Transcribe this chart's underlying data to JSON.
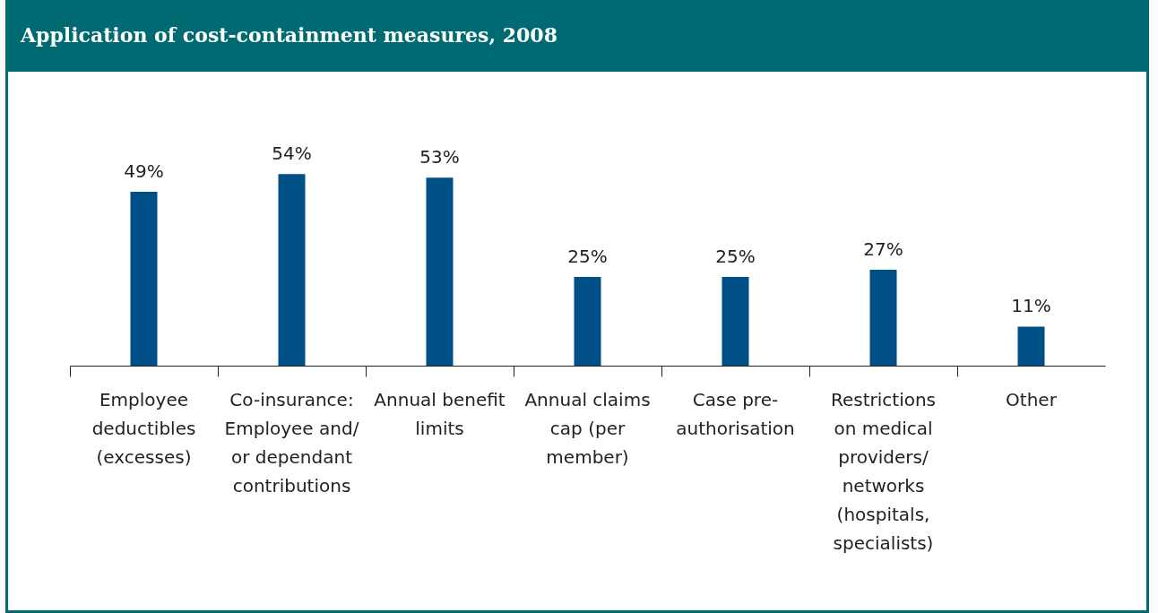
{
  "chart_data": {
    "type": "bar",
    "title": "Application of cost-containment measures, 2008",
    "categories": [
      "Employee deductibles (excesses)",
      "Co-insurance: Employee and/ or dependant contributions",
      "Annual benefit limits",
      "Annual claims cap (per member)",
      "Case pre-authorisation",
      "Restrictions on medical providers/ networks (hospitals, specialists)",
      "Other"
    ],
    "values": [
      49,
      54,
      53,
      25,
      25,
      27,
      11
    ],
    "value_labels": [
      "49%",
      "54%",
      "53%",
      "25%",
      "25%",
      "27%",
      "11%"
    ],
    "color": "#004f86"
  }
}
